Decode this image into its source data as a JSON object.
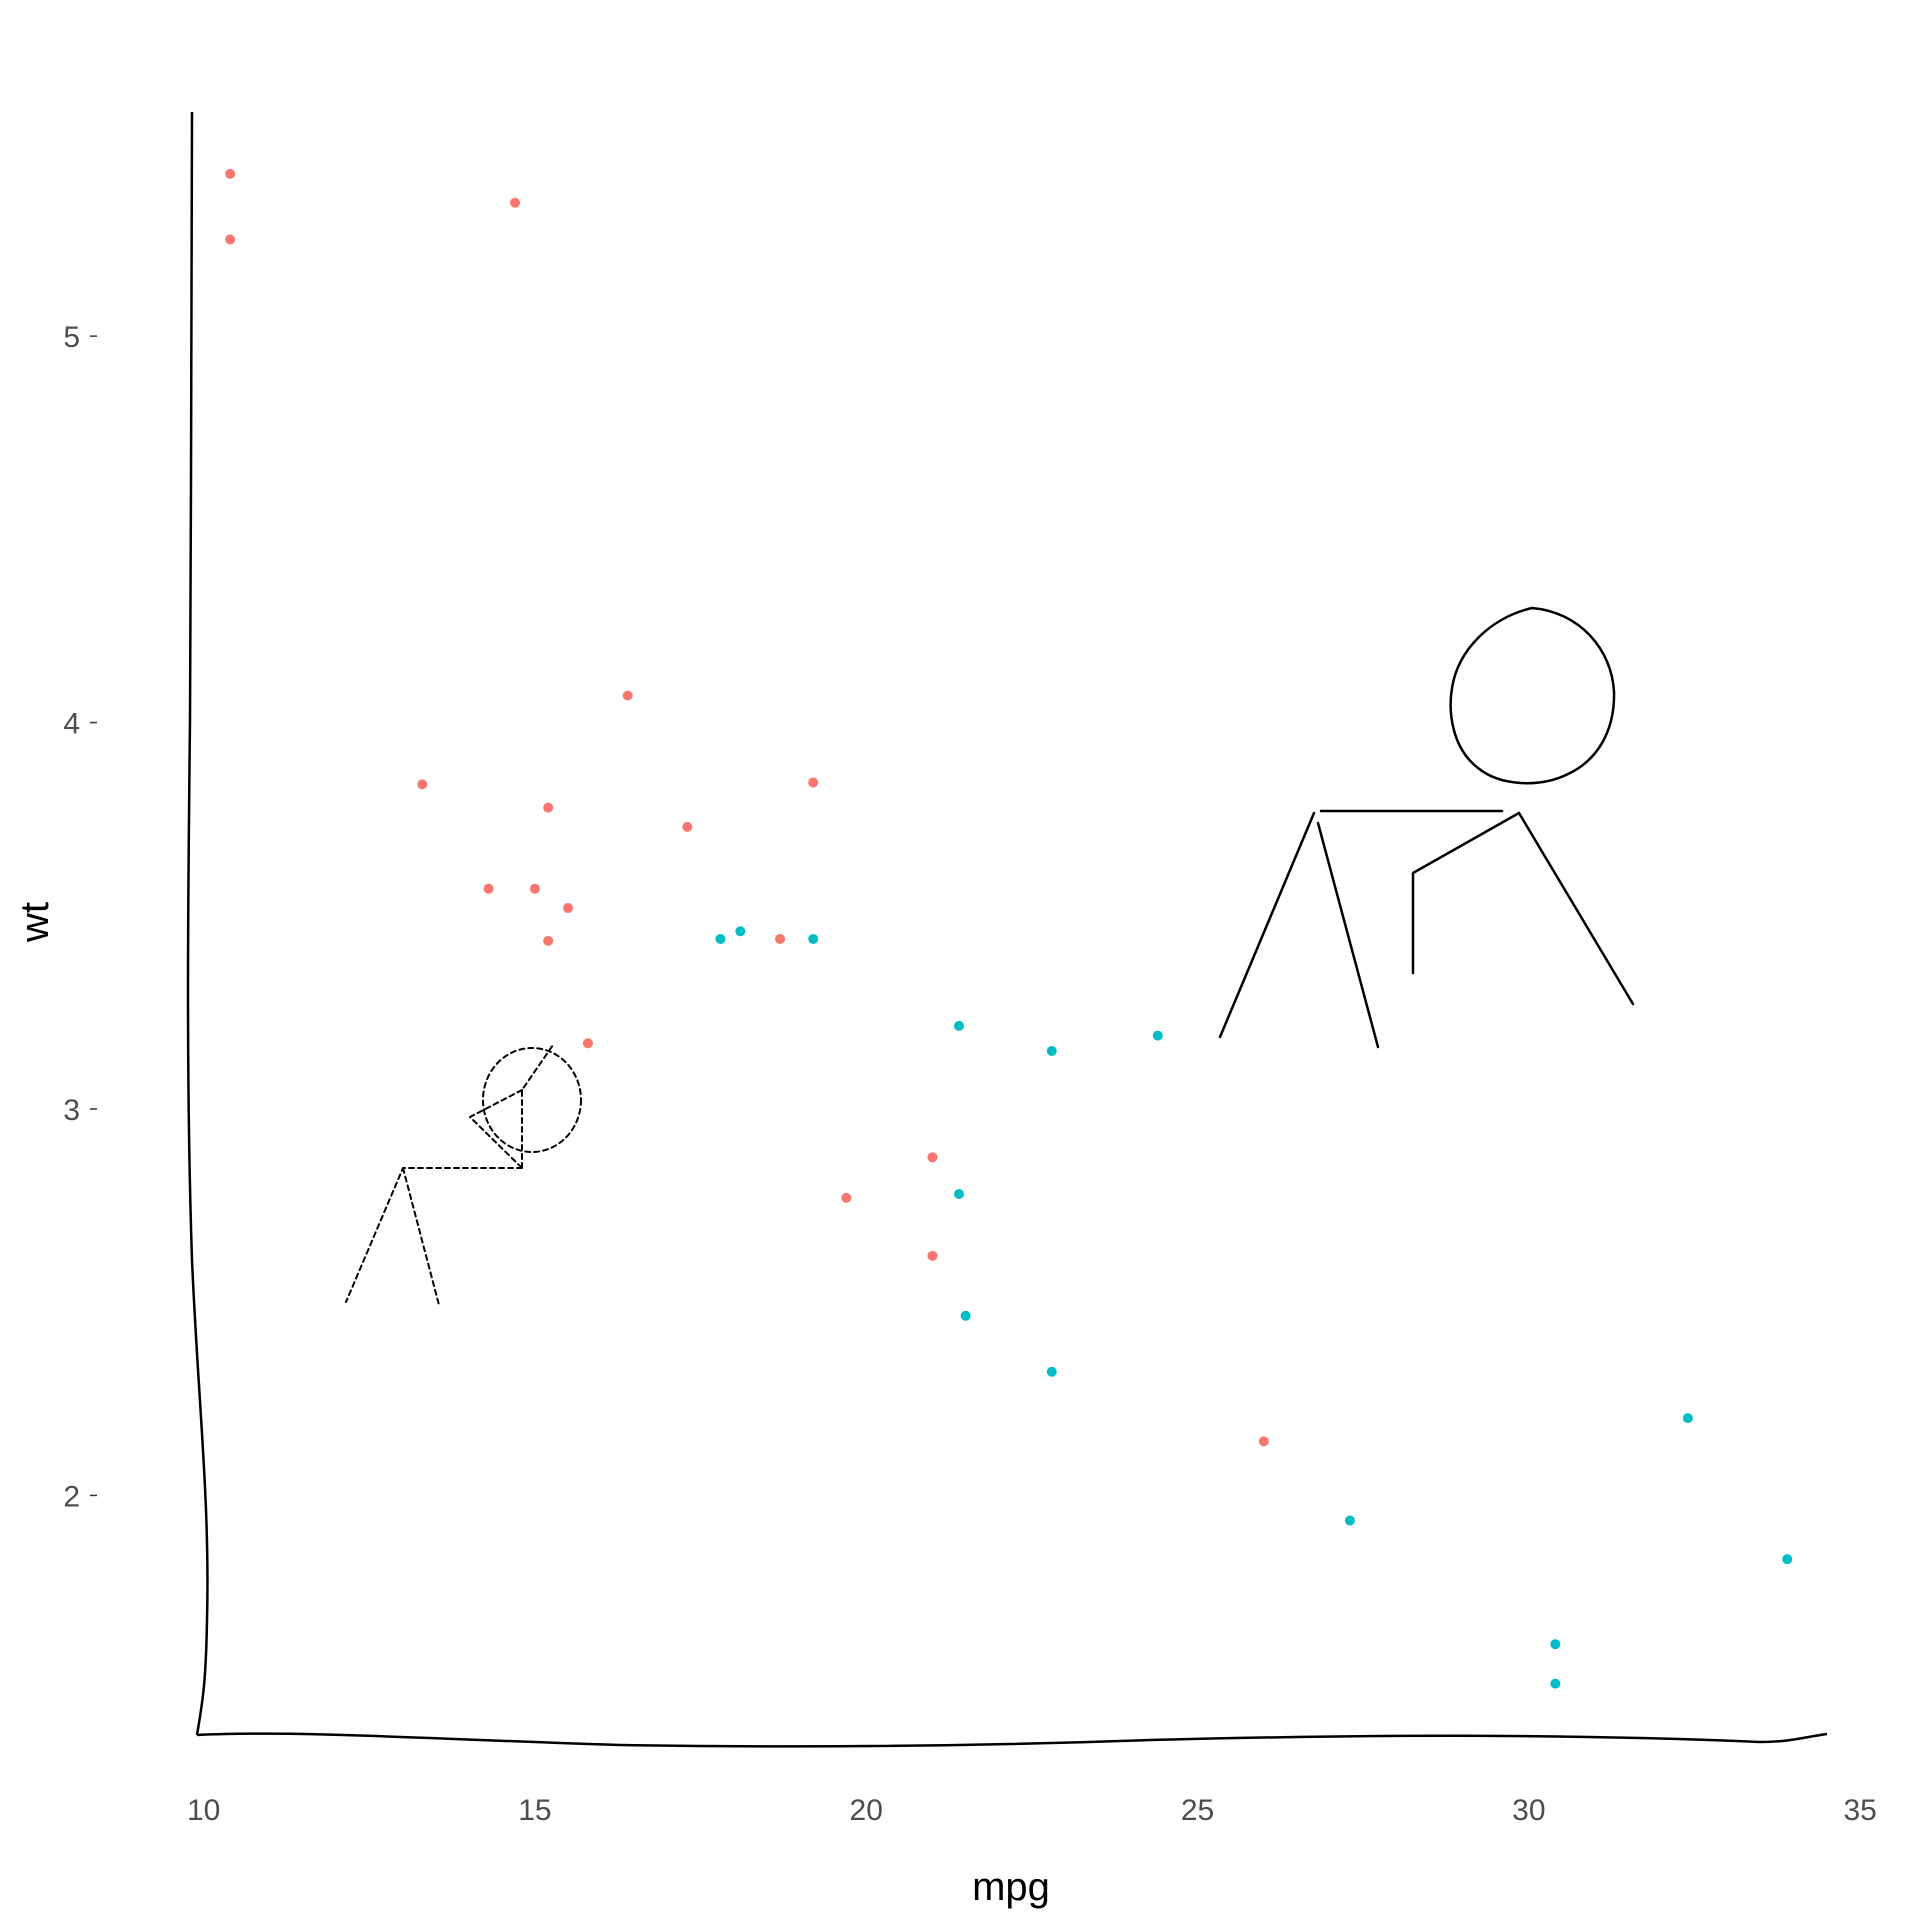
{
  "chart_data": {
    "type": "scatter",
    "title": "",
    "xlabel": "mpg",
    "ylabel": "wt",
    "xlim": [
      9.9,
      34.5
    ],
    "ylim": [
      1.38,
      5.58
    ],
    "xticks": [
      10,
      15,
      20,
      25,
      30,
      35
    ],
    "yticks": [
      2,
      3,
      4,
      5
    ],
    "grid": false,
    "legend": "none",
    "colors": {
      "group_a": "#F8766D",
      "group_b": "#00BFC4",
      "axis": "#000000"
    },
    "series": [
      {
        "color": "#F8766D",
        "points": [
          [
            10.4,
            5.42
          ],
          [
            10.4,
            5.25
          ],
          [
            14.7,
            5.345
          ],
          [
            16.4,
            4.07
          ],
          [
            13.3,
            3.84
          ],
          [
            19.2,
            3.845
          ],
          [
            15.2,
            3.78
          ],
          [
            17.3,
            3.73
          ],
          [
            14.3,
            3.57
          ],
          [
            15.0,
            3.57
          ],
          [
            15.5,
            3.52
          ],
          [
            15.2,
            3.435
          ],
          [
            18.7,
            3.44
          ],
          [
            15.8,
            3.17
          ],
          [
            21.0,
            2.875
          ],
          [
            19.7,
            2.77
          ],
          [
            21.0,
            2.62
          ],
          [
            26.0,
            2.14
          ]
        ]
      },
      {
        "color": "#00BFC4",
        "points": [
          [
            17.8,
            3.44
          ],
          [
            18.1,
            3.46
          ],
          [
            19.2,
            3.44
          ],
          [
            21.4,
            3.215
          ],
          [
            22.8,
            3.15
          ],
          [
            24.4,
            3.19
          ],
          [
            21.4,
            2.78
          ],
          [
            21.5,
            2.465
          ],
          [
            22.8,
            2.32
          ],
          [
            32.4,
            2.2
          ],
          [
            27.3,
            1.935
          ],
          [
            33.9,
            1.835
          ],
          [
            30.4,
            1.615
          ],
          [
            30.4,
            1.513
          ]
        ]
      }
    ]
  }
}
